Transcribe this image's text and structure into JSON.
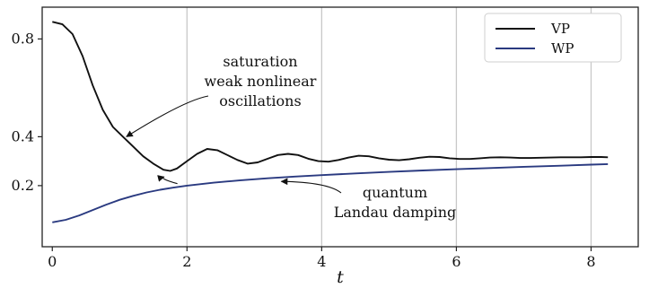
{
  "chart_data": {
    "type": "line",
    "title": "",
    "xlabel": "t",
    "ylabel": "",
    "xlim": [
      -0.15,
      8.7
    ],
    "ylim": [
      -0.05,
      0.93
    ],
    "xticks": [
      0,
      2,
      4,
      6,
      8
    ],
    "yticks": [
      0.2,
      0.4,
      0.8
    ],
    "grid": "vertical",
    "legend": "top-right",
    "colors": {
      "VP": "#111111",
      "WP": "#2a3a80",
      "grid": "#c8c8c8",
      "axes": "#222222"
    },
    "series": [
      {
        "name": "VP",
        "x": [
          0,
          0.15,
          0.3,
          0.45,
          0.6,
          0.75,
          0.9,
          1.05,
          1.2,
          1.35,
          1.5,
          1.65,
          1.75,
          1.85,
          2.0,
          2.15,
          2.3,
          2.45,
          2.6,
          2.75,
          2.9,
          3.05,
          3.2,
          3.35,
          3.5,
          3.65,
          3.8,
          3.95,
          4.1,
          4.25,
          4.4,
          4.55,
          4.7,
          4.85,
          5.0,
          5.15,
          5.3,
          5.45,
          5.6,
          5.75,
          5.9,
          6.05,
          6.2,
          6.35,
          6.5,
          6.65,
          6.8,
          6.95,
          7.1,
          7.25,
          7.4,
          7.55,
          7.7,
          7.85,
          8.0,
          8.15,
          8.25
        ],
        "y": [
          0.87,
          0.86,
          0.82,
          0.73,
          0.61,
          0.51,
          0.44,
          0.4,
          0.36,
          0.32,
          0.29,
          0.265,
          0.26,
          0.27,
          0.3,
          0.33,
          0.35,
          0.345,
          0.325,
          0.305,
          0.29,
          0.295,
          0.31,
          0.325,
          0.33,
          0.325,
          0.31,
          0.3,
          0.298,
          0.305,
          0.315,
          0.322,
          0.32,
          0.312,
          0.306,
          0.304,
          0.308,
          0.314,
          0.318,
          0.317,
          0.312,
          0.309,
          0.309,
          0.312,
          0.315,
          0.316,
          0.315,
          0.313,
          0.313,
          0.314,
          0.315,
          0.316,
          0.316,
          0.316,
          0.317,
          0.317,
          0.316
        ]
      },
      {
        "name": "WP",
        "x": [
          0,
          0.2,
          0.4,
          0.6,
          0.8,
          1.0,
          1.2,
          1.4,
          1.6,
          1.8,
          2.0,
          2.4,
          2.8,
          3.2,
          3.6,
          4.0,
          4.5,
          5.0,
          5.5,
          6.0,
          6.5,
          7.0,
          7.5,
          8.0,
          8.25
        ],
        "y": [
          0.05,
          0.06,
          0.078,
          0.1,
          0.122,
          0.142,
          0.158,
          0.172,
          0.183,
          0.192,
          0.2,
          0.212,
          0.222,
          0.23,
          0.237,
          0.243,
          0.25,
          0.256,
          0.262,
          0.267,
          0.272,
          0.277,
          0.281,
          0.286,
          0.288
        ]
      }
    ],
    "annotations": [
      {
        "lines": [
          "saturation",
          "weak nonlinear",
          "oscillations"
        ],
        "arrow_to": [
          1.1,
          0.4
        ]
      },
      {
        "lines": [
          "quantum",
          "Landau damping"
        ],
        "arrow_to": [
          3.4,
          0.232
        ]
      },
      {
        "arrow_from": [
          1.75,
          0.23
        ],
        "arrow_to": [
          1.5,
          0.265
        ]
      }
    ]
  }
}
